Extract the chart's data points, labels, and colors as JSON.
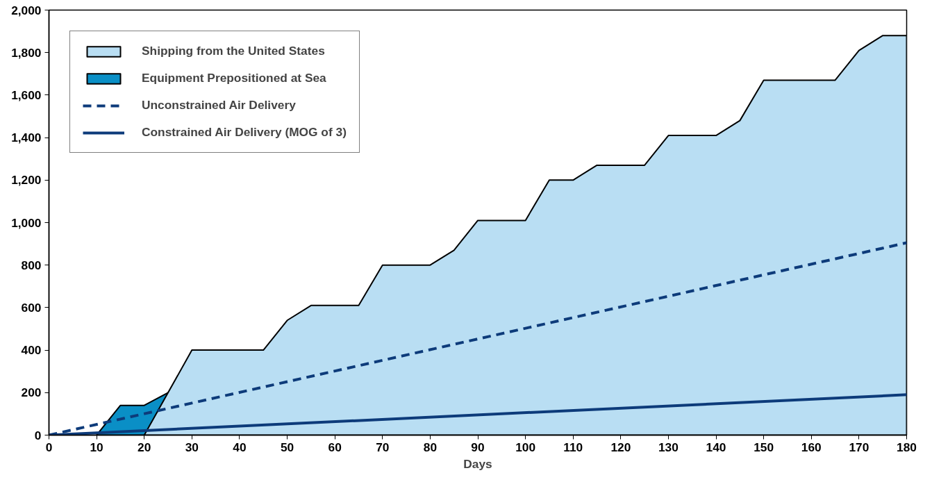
{
  "chart_data": {
    "type": "area",
    "xlabel": "Days",
    "xlim": [
      0,
      180
    ],
    "ylim": [
      0,
      2000
    ],
    "xticks": [
      0,
      10,
      20,
      30,
      40,
      50,
      60,
      70,
      80,
      90,
      100,
      110,
      120,
      130,
      140,
      150,
      160,
      170,
      180
    ],
    "yticks": [
      {
        "value": 0,
        "label": "0"
      },
      {
        "value": 200,
        "label": "200"
      },
      {
        "value": 400,
        "label": "400"
      },
      {
        "value": 600,
        "label": "600"
      },
      {
        "value": 800,
        "label": "800"
      },
      {
        "value": 1000,
        "label": "1,000"
      },
      {
        "value": 1200,
        "label": "1,200"
      },
      {
        "value": 1400,
        "label": "1,400"
      },
      {
        "value": 1600,
        "label": "1,600"
      },
      {
        "value": 1800,
        "label": "1,800"
      },
      {
        "value": 2000,
        "label": "2,000"
      }
    ],
    "grid": false,
    "legend": "top left",
    "series": [
      {
        "name": "Shipping from the United States",
        "color": "#b9def3",
        "x": [
          20,
          25,
          30,
          45,
          50,
          55,
          65,
          70,
          80,
          85,
          90,
          100,
          105,
          110,
          115,
          125,
          130,
          140,
          145,
          150,
          165,
          170,
          175,
          180
        ],
        "values": [
          0,
          200,
          400,
          400,
          540,
          610,
          610,
          800,
          800,
          870,
          1010,
          1010,
          1200,
          1200,
          1270,
          1270,
          1410,
          1410,
          1480,
          1670,
          1670,
          1810,
          1880,
          1880
        ]
      },
      {
        "name": "Equipment Prepositioned at Sea",
        "color": "#0a8fc6",
        "x": [
          10,
          15,
          20,
          25
        ],
        "values": [
          0,
          140,
          140,
          200
        ]
      },
      {
        "name": "Unconstrained Air Delivery",
        "type": "line",
        "line_style": "dashed",
        "color": "#0d3b7a",
        "x": [
          0,
          180
        ],
        "values": [
          0,
          905
        ]
      },
      {
        "name": "Constrained Air Delivery (MOG of 3)",
        "type": "line",
        "line_style": "solid",
        "color": "#0d3b7a",
        "x": [
          0,
          180
        ],
        "values": [
          0,
          190
        ]
      }
    ]
  }
}
